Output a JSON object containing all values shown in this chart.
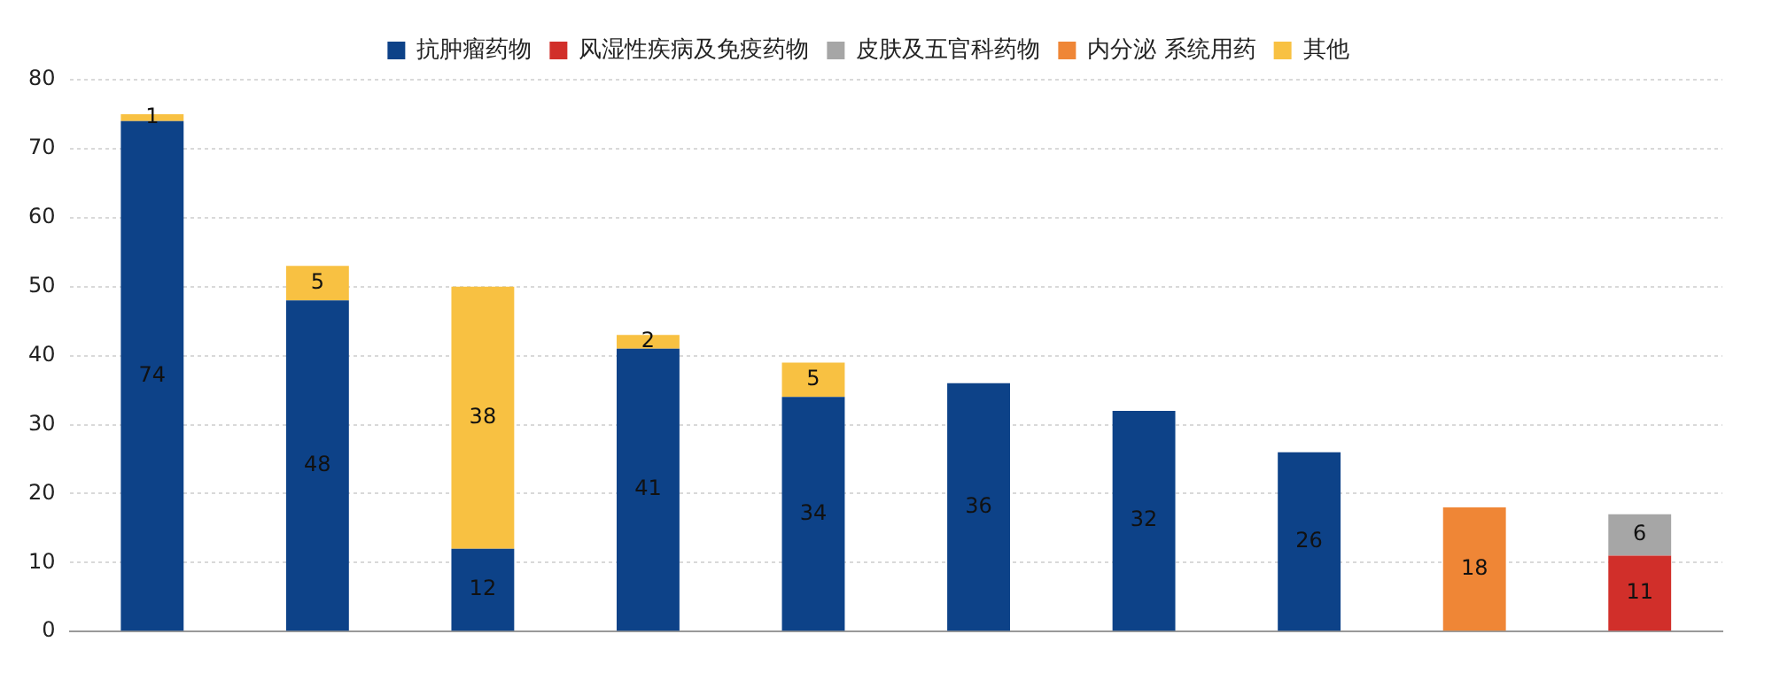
{
  "chart_data": {
    "type": "bar",
    "stacked": true,
    "categories": [
      null,
      null,
      null,
      null,
      null,
      null,
      null,
      null,
      null,
      null
    ],
    "series": [
      {
        "name": "抗肿瘤药物",
        "color": "#0d4288",
        "values": [
          74,
          48,
          12,
          41,
          34,
          36,
          32,
          26,
          null,
          null
        ]
      },
      {
        "name": "风湿性疾病及免疫药物",
        "color": "#d12f2a",
        "values": [
          null,
          null,
          null,
          null,
          null,
          null,
          null,
          null,
          null,
          11
        ]
      },
      {
        "name": "皮肤及五官科药物",
        "color": "#a6a6a6",
        "values": [
          null,
          null,
          null,
          null,
          null,
          null,
          null,
          null,
          null,
          6
        ]
      },
      {
        "name": "内分泌 系统用药",
        "color": "#ef8636",
        "values": [
          null,
          null,
          null,
          null,
          null,
          null,
          null,
          null,
          18,
          null
        ]
      },
      {
        "name": "其他",
        "color": "#f8c142",
        "values": [
          1,
          5,
          38,
          2,
          5,
          null,
          null,
          null,
          null,
          null
        ]
      }
    ],
    "ylim": [
      0,
      80
    ],
    "yticks": [
      0,
      10,
      20,
      30,
      40,
      50,
      60,
      70,
      80
    ],
    "grid": "y",
    "legend": "top",
    "data_labels": true
  }
}
